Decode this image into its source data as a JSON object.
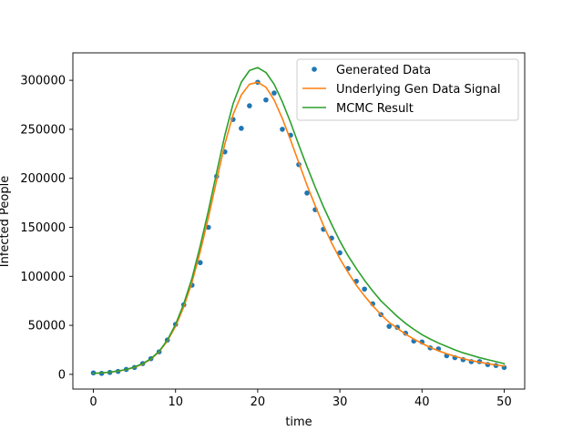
{
  "chart_data": {
    "type": "line",
    "title": "",
    "xlabel": "time",
    "ylabel": "Infected People",
    "xlim": [
      -2.5,
      52.5
    ],
    "ylim": [
      -15000,
      328000
    ],
    "xticks": [
      0,
      10,
      20,
      30,
      40,
      50
    ],
    "yticks": [
      0,
      50000,
      100000,
      150000,
      200000,
      250000,
      300000
    ],
    "grid": false,
    "legend_position": "top-right",
    "series": [
      {
        "name": "Generated Data",
        "kind": "scatter",
        "color": "#1f77b4",
        "x": [
          0,
          1,
          2,
          3,
          4,
          5,
          6,
          7,
          8,
          9,
          10,
          11,
          12,
          13,
          14,
          15,
          16,
          17,
          18,
          19,
          20,
          21,
          22,
          23,
          24,
          25,
          26,
          27,
          28,
          29,
          30,
          31,
          32,
          33,
          34,
          35,
          36,
          37,
          38,
          39,
          40,
          41,
          42,
          43,
          44,
          45,
          46,
          47,
          48,
          49,
          50
        ],
        "y": [
          1500,
          1000,
          2000,
          3000,
          5000,
          7000,
          11000,
          16000,
          23000,
          35000,
          51000,
          71000,
          91000,
          114000,
          150000,
          202000,
          227000,
          260000,
          251000,
          274000,
          298000,
          280000,
          287000,
          250000,
          244000,
          214000,
          185000,
          168000,
          148000,
          139000,
          124000,
          108000,
          95000,
          87000,
          72000,
          61000,
          49000,
          48000,
          42000,
          34000,
          33000,
          27000,
          26000,
          19000,
          17000,
          15000,
          13000,
          13000,
          10000,
          9000,
          7000
        ]
      },
      {
        "name": "Underlying Gen Data Signal",
        "kind": "line",
        "color": "#ff7f0e",
        "x": [
          0,
          1,
          2,
          3,
          4,
          5,
          6,
          7,
          8,
          9,
          10,
          11,
          12,
          13,
          14,
          15,
          16,
          17,
          18,
          19,
          20,
          21,
          22,
          23,
          24,
          25,
          26,
          27,
          28,
          29,
          30,
          31,
          32,
          33,
          34,
          35,
          36,
          37,
          38,
          39,
          40,
          41,
          42,
          43,
          44,
          45,
          46,
          47,
          48,
          49,
          50
        ],
        "y": [
          1000,
          1500,
          2200,
          3300,
          4800,
          7200,
          10500,
          15500,
          23000,
          34000,
          49000,
          69000,
          94000,
          125000,
          160000,
          198000,
          235000,
          265000,
          285000,
          296000,
          298000,
          293000,
          280000,
          261000,
          239000,
          216000,
          193000,
          172000,
          152000,
          134000,
          118000,
          104000,
          91000,
          80000,
          70000,
          61000,
          53000,
          47000,
          41000,
          36000,
          31500,
          27500,
          24000,
          21000,
          18500,
          16000,
          14000,
          12500,
          11000,
          9500,
          8500
        ]
      },
      {
        "name": "MCMC Result",
        "kind": "line",
        "color": "#2ca02c",
        "x": [
          0,
          1,
          2,
          3,
          4,
          5,
          6,
          7,
          8,
          9,
          10,
          11,
          12,
          13,
          14,
          15,
          16,
          17,
          18,
          19,
          20,
          21,
          22,
          23,
          24,
          25,
          26,
          27,
          28,
          29,
          30,
          31,
          32,
          33,
          34,
          35,
          36,
          37,
          38,
          39,
          40,
          41,
          42,
          43,
          44,
          45,
          46,
          47,
          48,
          49,
          50
        ],
        "y": [
          1000,
          1500,
          2300,
          3500,
          5000,
          7500,
          11000,
          16000,
          23500,
          35000,
          51000,
          72000,
          98000,
          131000,
          167000,
          206000,
          244000,
          276000,
          298000,
          310000,
          313000,
          308000,
          296000,
          278000,
          257000,
          234000,
          212000,
          191000,
          171000,
          153000,
          136000,
          121000,
          108000,
          96000,
          85000,
          75000,
          67000,
          59000,
          52000,
          46000,
          40500,
          36000,
          32000,
          28500,
          25000,
          22000,
          19500,
          17000,
          15000,
          13000,
          11000
        ]
      }
    ]
  }
}
